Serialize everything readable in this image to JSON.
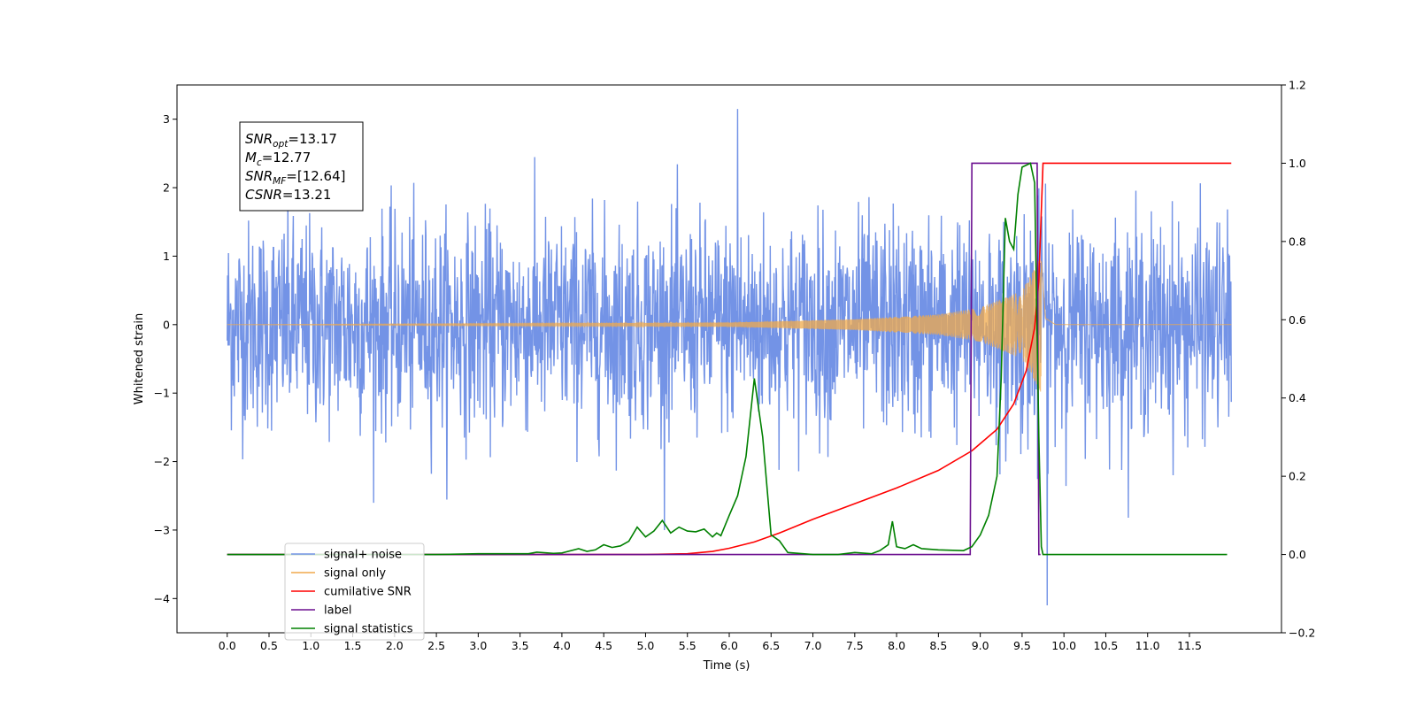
{
  "chart_data": {
    "type": "line",
    "title": "",
    "xlabel": "Time (s)",
    "ylabel": "Whitened strain",
    "xlim": [
      -0.6,
      12.6
    ],
    "ylim_left": [
      -4.5,
      3.5
    ],
    "ylim_right": [
      -0.2,
      1.2
    ],
    "x_ticks": [
      "0.0",
      "0.5",
      "1.0",
      "1.5",
      "2.0",
      "2.5",
      "3.0",
      "3.5",
      "4.0",
      "4.5",
      "5.0",
      "5.5",
      "6.0",
      "6.5",
      "7.0",
      "7.5",
      "8.0",
      "8.5",
      "9.0",
      "9.5",
      "10.0",
      "10.5",
      "11.0",
      "11.5"
    ],
    "y_ticks_left": [
      "3",
      "2",
      "1",
      "0",
      "−1",
      "−2",
      "−3",
      "−4"
    ],
    "y_ticks_right": [
      "1.2",
      "1.0",
      "0.8",
      "0.6",
      "0.4",
      "0.2",
      "0.0",
      "−0.2"
    ],
    "grid": false,
    "legend_position": "lower-left",
    "annotation": {
      "lines": [
        {
          "main": "SNR",
          "sub": "opt",
          "rest": "=13.17"
        },
        {
          "main": "M",
          "sub": "c",
          "rest": "=12.77"
        },
        {
          "main": "SNR",
          "sub": "MF",
          "rest": "=[12.64]"
        },
        {
          "main": "CSNR",
          "sub": "",
          "rest": "=13.21"
        }
      ]
    },
    "series": [
      {
        "name": "signal+ noise",
        "axis": "left",
        "color": "#7393e6",
        "description_kind": "noise",
        "x_range": [
          0.0,
          12.0
        ],
        "noise_std": 0.75,
        "envelope": [
          [
            0,
            2.6
          ],
          [
            6.0,
            3.15
          ],
          [
            9.73,
            2.3
          ],
          [
            9.8,
            -4.1
          ],
          [
            12,
            2.6
          ]
        ]
      },
      {
        "name": "signal only",
        "axis": "left",
        "color": "#f0a94b",
        "chirp": {
          "start": 0.0,
          "merge": 9.73,
          "end": 12.0,
          "peak_amplitude": 1.0,
          "amplitude_points": [
            [
              0,
              0.0
            ],
            [
              6.0,
              0.03
            ],
            [
              7.5,
              0.08
            ],
            [
              8.5,
              0.15
            ],
            [
              9.0,
              0.25
            ],
            [
              9.5,
              0.5
            ],
            [
              9.73,
              1.0
            ],
            [
              9.78,
              0.1
            ],
            [
              9.9,
              0.0
            ]
          ]
        }
      },
      {
        "name": "cumilative SNR",
        "axis": "right",
        "color": "#ff0000",
        "x": [
          0.0,
          5.0,
          5.5,
          5.8,
          6.0,
          6.3,
          6.6,
          7.0,
          7.5,
          8.0,
          8.5,
          8.9,
          9.2,
          9.4,
          9.55,
          9.65,
          9.7,
          9.73,
          9.75,
          12.0
        ],
        "y": [
          0.0,
          0.0,
          0.002,
          0.008,
          0.016,
          0.032,
          0.055,
          0.09,
          0.13,
          0.17,
          0.215,
          0.265,
          0.32,
          0.385,
          0.47,
          0.58,
          0.7,
          0.88,
          1.0,
          1.0
        ]
      },
      {
        "name": "label",
        "axis": "right",
        "color": "#6b0f8f",
        "x": [
          0.0,
          8.88,
          8.9,
          9.68,
          9.7,
          9.72
        ],
        "y": [
          0.0,
          0.0,
          1.0,
          1.0,
          0.0,
          0.0
        ]
      },
      {
        "name": "signal statistics",
        "axis": "right",
        "color": "#008000",
        "x": [
          0.0,
          2.5,
          3.0,
          3.6,
          3.7,
          3.9,
          4.0,
          4.2,
          4.3,
          4.4,
          4.5,
          4.6,
          4.7,
          4.8,
          4.9,
          5.0,
          5.1,
          5.2,
          5.3,
          5.4,
          5.5,
          5.6,
          5.7,
          5.8,
          5.85,
          5.9,
          6.0,
          6.1,
          6.2,
          6.25,
          6.3,
          6.4,
          6.5,
          6.6,
          6.7,
          7.0,
          7.3,
          7.5,
          7.7,
          7.8,
          7.9,
          7.95,
          8.0,
          8.1,
          8.2,
          8.3,
          8.5,
          8.8,
          8.9,
          9.0,
          9.1,
          9.2,
          9.25,
          9.3,
          9.35,
          9.4,
          9.45,
          9.5,
          9.6,
          9.65,
          9.7,
          9.73,
          9.75,
          11.0,
          11.95
        ],
        "y": [
          0.0,
          0.0,
          0.002,
          0.002,
          0.006,
          0.003,
          0.004,
          0.015,
          0.008,
          0.012,
          0.025,
          0.018,
          0.022,
          0.034,
          0.07,
          0.045,
          0.06,
          0.087,
          0.055,
          0.07,
          0.06,
          0.058,
          0.065,
          0.045,
          0.055,
          0.048,
          0.1,
          0.15,
          0.25,
          0.35,
          0.45,
          0.3,
          0.05,
          0.035,
          0.005,
          0.0,
          0.0,
          0.005,
          0.002,
          0.01,
          0.025,
          0.085,
          0.02,
          0.015,
          0.025,
          0.015,
          0.012,
          0.01,
          0.02,
          0.05,
          0.1,
          0.2,
          0.45,
          0.86,
          0.8,
          0.78,
          0.92,
          0.99,
          1.0,
          0.95,
          0.3,
          0.02,
          0.0,
          0.0,
          0.0
        ]
      }
    ]
  }
}
